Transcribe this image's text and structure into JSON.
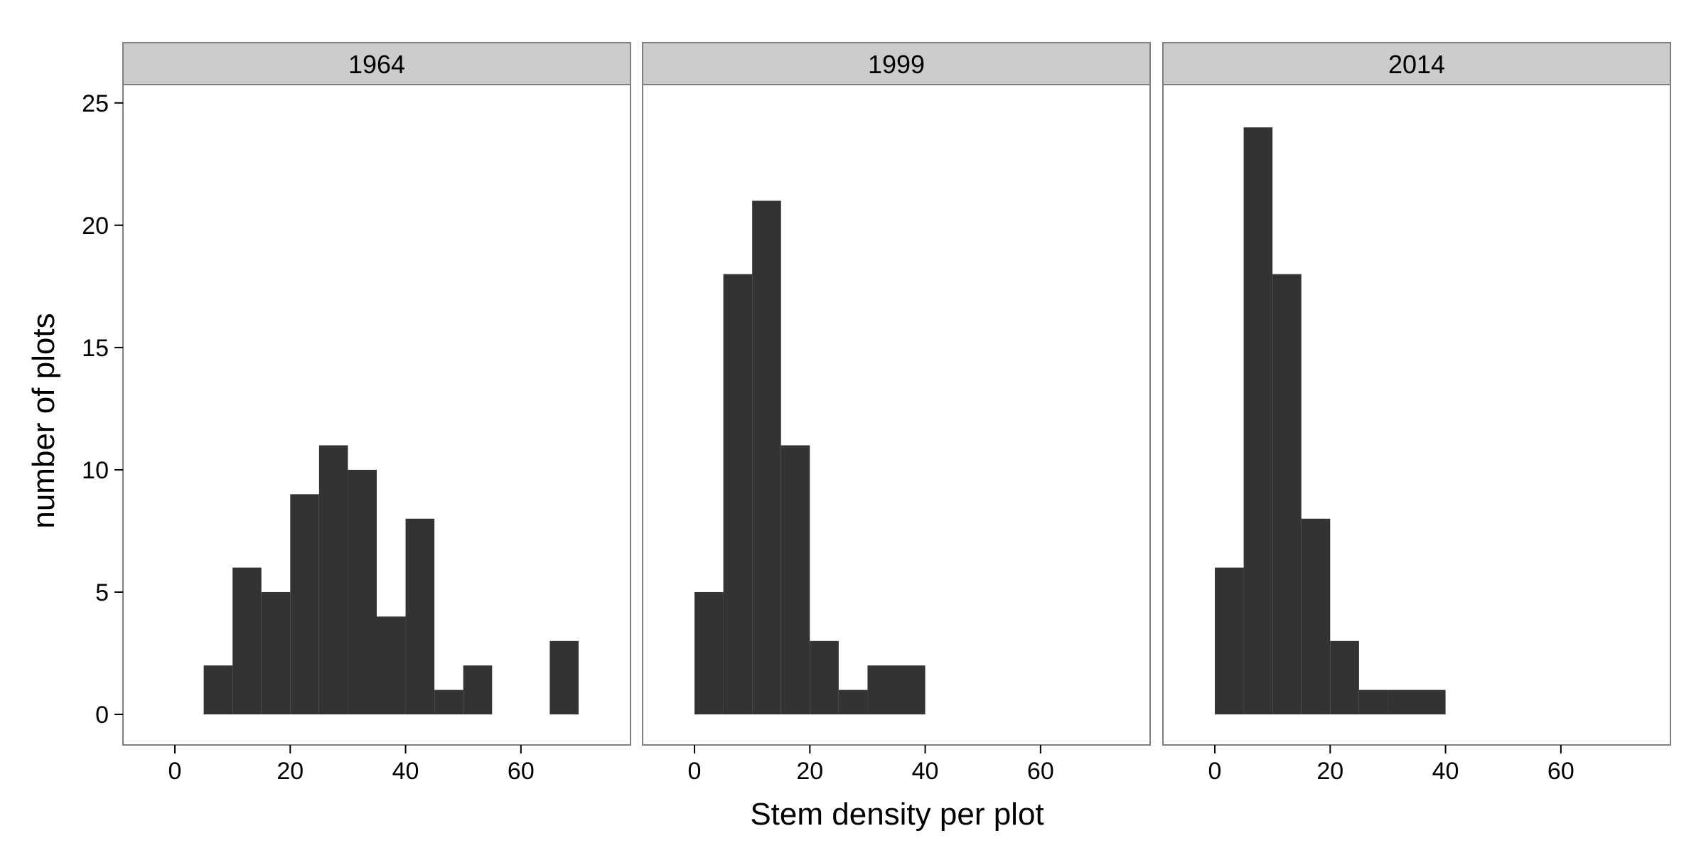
{
  "chart_data": {
    "type": "bar",
    "facet_layout": "1 row x 3 panels, shared y axis",
    "xlabel": "Stem density per plot",
    "ylabel": "number of plots",
    "xlim": [
      -9,
      79
    ],
    "ylim": [
      -1.25,
      25.75
    ],
    "x_ticks": [
      0,
      20,
      40,
      60
    ],
    "y_ticks": [
      0,
      5,
      10,
      15,
      20,
      25
    ],
    "bin_width": 5,
    "grid": false,
    "legend": "none",
    "colors": {
      "bar": "#333333",
      "strip_fill": "#cccccc",
      "border": "#7f7f7f",
      "background": "#ffffff"
    },
    "panels": [
      {
        "label": "1964",
        "bins": [
          {
            "x0": 5,
            "x1": 10,
            "count": 2
          },
          {
            "x0": 10,
            "x1": 15,
            "count": 6
          },
          {
            "x0": 15,
            "x1": 20,
            "count": 5
          },
          {
            "x0": 20,
            "x1": 25,
            "count": 9
          },
          {
            "x0": 25,
            "x1": 30,
            "count": 11
          },
          {
            "x0": 30,
            "x1": 35,
            "count": 10
          },
          {
            "x0": 35,
            "x1": 40,
            "count": 4
          },
          {
            "x0": 40,
            "x1": 45,
            "count": 8
          },
          {
            "x0": 45,
            "x1": 50,
            "count": 1
          },
          {
            "x0": 50,
            "x1": 55,
            "count": 2
          },
          {
            "x0": 65,
            "x1": 70,
            "count": 3
          }
        ]
      },
      {
        "label": "1999",
        "bins": [
          {
            "x0": 0,
            "x1": 5,
            "count": 5
          },
          {
            "x0": 5,
            "x1": 10,
            "count": 18
          },
          {
            "x0": 10,
            "x1": 15,
            "count": 21
          },
          {
            "x0": 15,
            "x1": 20,
            "count": 11
          },
          {
            "x0": 20,
            "x1": 25,
            "count": 3
          },
          {
            "x0": 25,
            "x1": 30,
            "count": 1
          },
          {
            "x0": 30,
            "x1": 35,
            "count": 2
          },
          {
            "x0": 35,
            "x1": 40,
            "count": 2
          }
        ]
      },
      {
        "label": "2014",
        "bins": [
          {
            "x0": 0,
            "x1": 5,
            "count": 6
          },
          {
            "x0": 5,
            "x1": 10,
            "count": 24
          },
          {
            "x0": 10,
            "x1": 15,
            "count": 18
          },
          {
            "x0": 15,
            "x1": 20,
            "count": 8
          },
          {
            "x0": 20,
            "x1": 25,
            "count": 3
          },
          {
            "x0": 25,
            "x1": 30,
            "count": 1
          },
          {
            "x0": 30,
            "x1": 35,
            "count": 1
          },
          {
            "x0": 35,
            "x1": 40,
            "count": 1
          }
        ]
      }
    ]
  }
}
